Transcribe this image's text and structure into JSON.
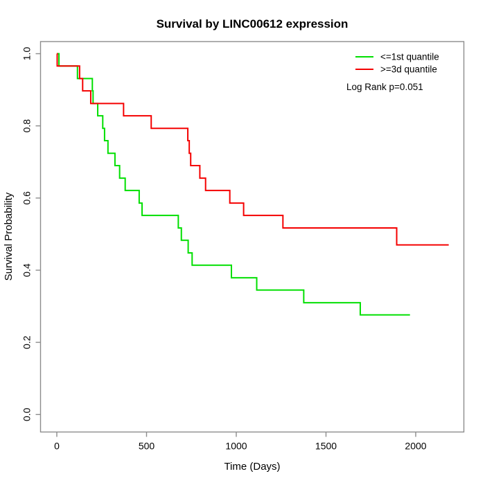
{
  "chart_data": {
    "type": "line",
    "subtype": "kaplan-meier-step",
    "title": "Survival by LINC00612 expression",
    "xlabel": "Time (Days)",
    "ylabel": "Survival Probability",
    "xlim": [
      0,
      2200
    ],
    "ylim": [
      0.0,
      1.0
    ],
    "x_ticks": [
      0,
      500,
      1000,
      1500,
      2000
    ],
    "y_ticks": [
      0.0,
      0.2,
      0.4,
      0.6,
      0.8,
      1.0
    ],
    "grid": false,
    "legend_position": "top-right",
    "annotation": "Log Rank p=0.051",
    "axis_color": "#8c8c8c",
    "series": [
      {
        "name": "<=1st quantile",
        "color": "#00DF00",
        "end_day": 1968,
        "steps": [
          [
            0,
            1.0
          ],
          [
            12,
            0.966
          ],
          [
            115,
            0.931
          ],
          [
            198,
            0.897
          ],
          [
            202,
            0.862
          ],
          [
            228,
            0.828
          ],
          [
            256,
            0.793
          ],
          [
            266,
            0.759
          ],
          [
            285,
            0.724
          ],
          [
            324,
            0.69
          ],
          [
            350,
            0.655
          ],
          [
            381,
            0.621
          ],
          [
            459,
            0.586
          ],
          [
            475,
            0.552
          ],
          [
            677,
            0.517
          ],
          [
            694,
            0.483
          ],
          [
            732,
            0.448
          ],
          [
            754,
            0.414
          ],
          [
            973,
            0.379
          ],
          [
            1114,
            0.345
          ],
          [
            1376,
            0.31
          ],
          [
            1691,
            0.276
          ]
        ]
      },
      {
        "name": ">=3d quantile",
        "color": "#F40000",
        "end_day": 2184,
        "steps": [
          [
            0,
            1.0
          ],
          [
            2,
            0.966
          ],
          [
            127,
            0.931
          ],
          [
            144,
            0.897
          ],
          [
            189,
            0.862
          ],
          [
            372,
            0.828
          ],
          [
            526,
            0.793
          ],
          [
            730,
            0.759
          ],
          [
            738,
            0.724
          ],
          [
            746,
            0.69
          ],
          [
            797,
            0.655
          ],
          [
            829,
            0.621
          ],
          [
            964,
            0.586
          ],
          [
            1041,
            0.552
          ],
          [
            1260,
            0.517
          ],
          [
            1894,
            0.47
          ]
        ]
      }
    ]
  }
}
